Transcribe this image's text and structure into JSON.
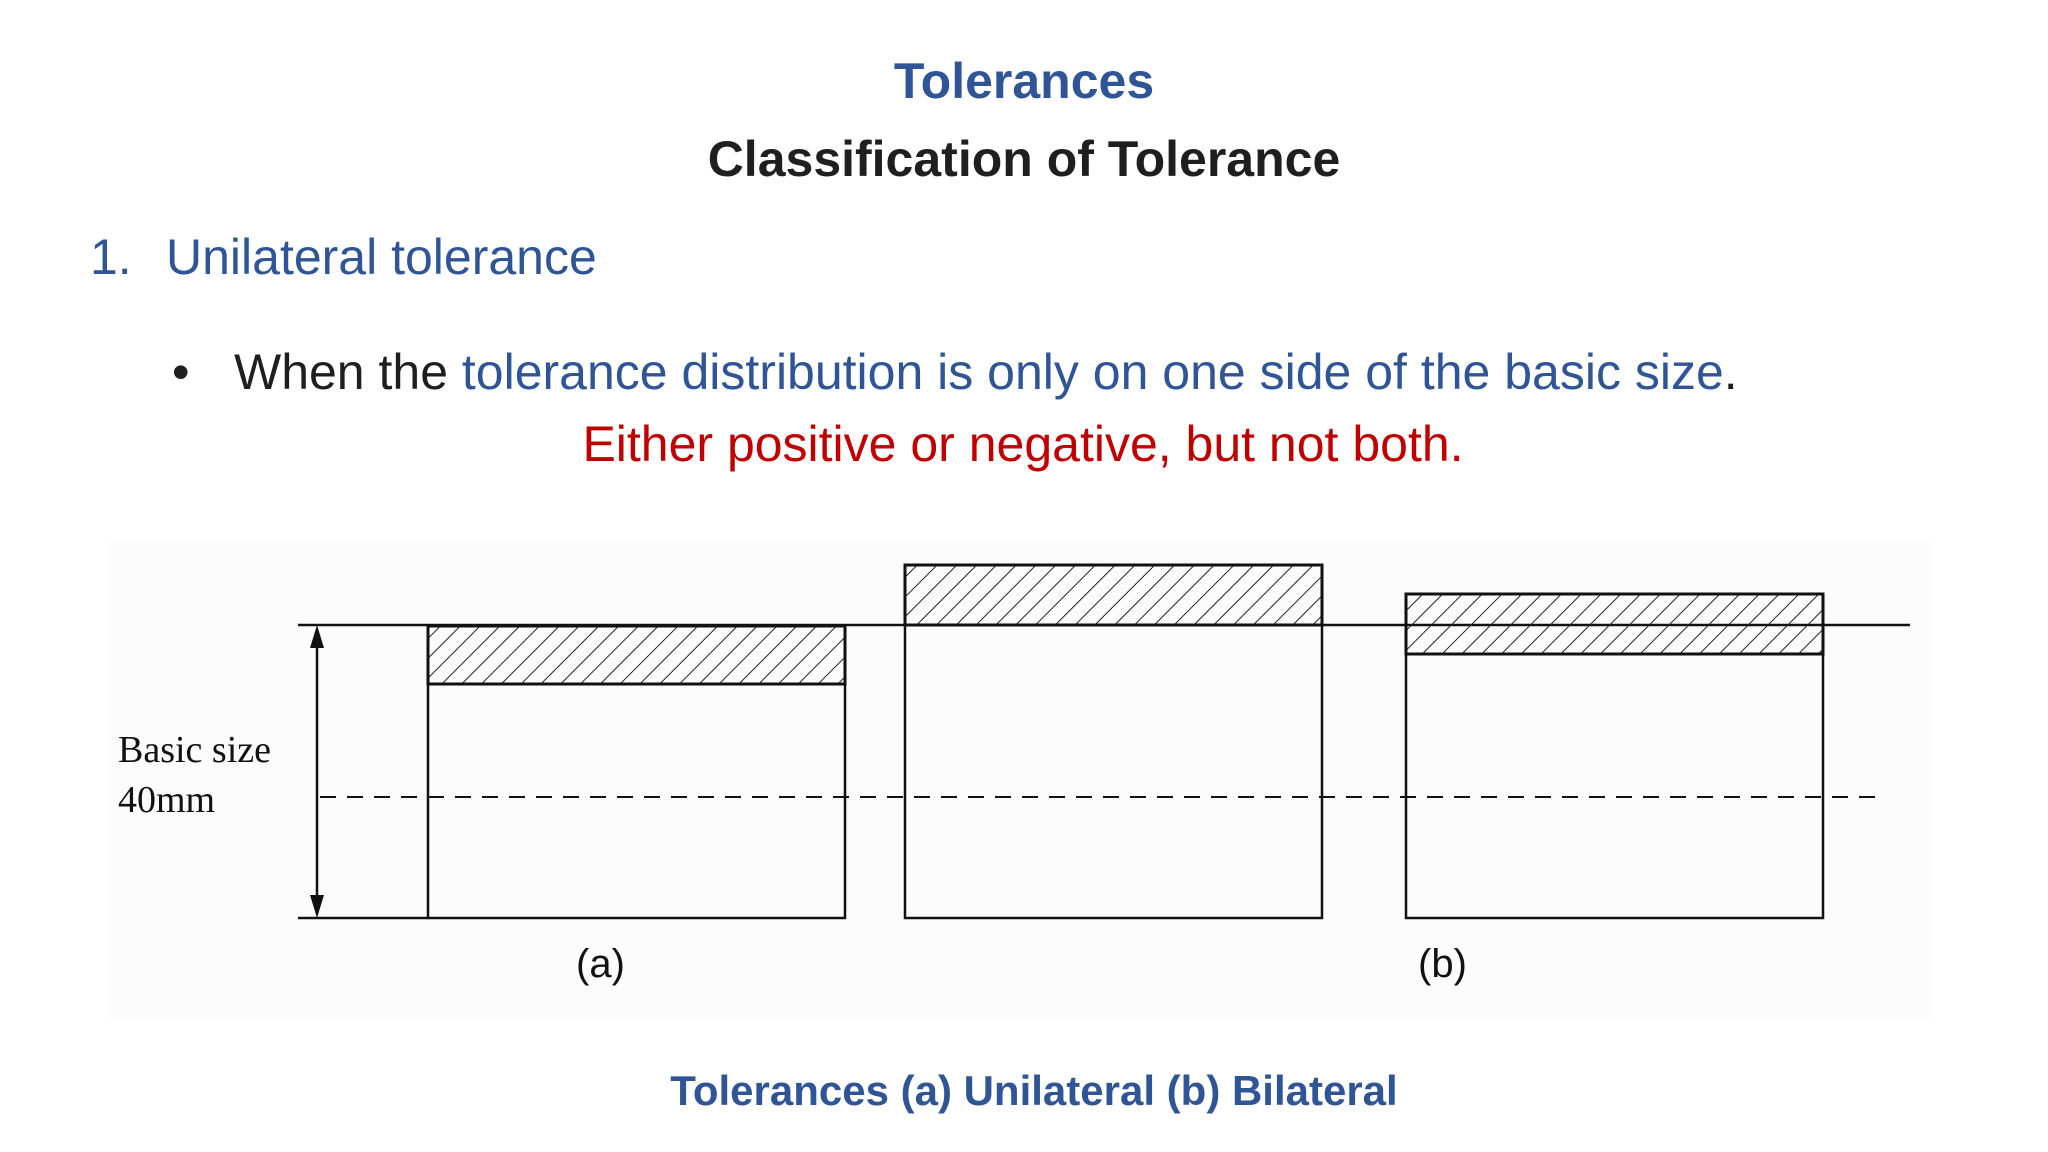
{
  "slide": {
    "title": "Tolerances",
    "subtitle": "Classification of Tolerance",
    "item_number": "1.",
    "item_label": "Unilateral tolerance",
    "bullet_char": "•",
    "bullet_prefix": "When the ",
    "bullet_highlight": "tolerance distribution is only on one side of the basic size",
    "bullet_suffix": ".",
    "emphasis": "Either positive or negative, but not both.",
    "caption": "Tolerances (a) Unilateral (b) Bilateral"
  },
  "figure": {
    "basic_size_label": "Basic size",
    "dimension_label": "40mm",
    "label_a": "(a)",
    "label_b": "(b)"
  },
  "colors": {
    "title_blue": "#2f5597",
    "text_dark": "#1f1f1f",
    "emphasis_red": "#c00000"
  }
}
